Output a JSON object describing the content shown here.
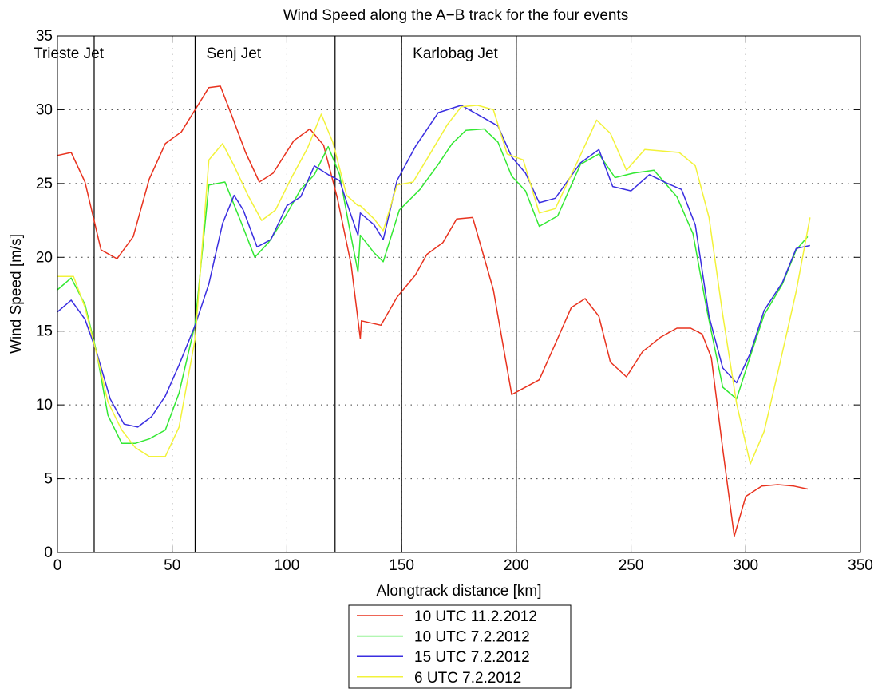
{
  "chart_data": {
    "type": "line",
    "title": "Wind Speed along the A−B track for the four events",
    "xlabel": "Alongtrack distance [km]",
    "ylabel": "Wind Speed [m/s]",
    "xlim": [
      0,
      350
    ],
    "ylim": [
      0,
      35
    ],
    "xticks": [
      0,
      50,
      100,
      150,
      200,
      250,
      300,
      350
    ],
    "yticks": [
      0,
      5,
      10,
      15,
      20,
      25,
      30,
      35
    ],
    "grid": true,
    "legend_position": "below plot",
    "vertical_lines": [
      16,
      60,
      121,
      150,
      200
    ],
    "regions": [
      {
        "label": "Trieste Jet",
        "x": 0
      },
      {
        "label": "Senj Jet",
        "x": 60
      },
      {
        "label": "Karlobag Jet",
        "x": 150
      }
    ],
    "x": [
      0,
      6.6,
      13.2,
      19.8,
      26.4,
      33,
      39.6,
      46.2,
      52.8,
      59.4,
      66,
      72.6,
      79.2,
      85.8,
      92.4,
      99,
      105.6,
      112.2,
      118.8,
      125.4,
      132,
      138.6,
      145.2,
      151.8,
      158.4,
      165,
      171.6,
      178.2,
      184.8,
      191.4,
      198,
      204.6,
      211.2,
      217.8,
      224.4,
      231,
      237.6,
      244.2,
      250.8,
      257.4,
      264,
      270.6,
      277.2,
      283.8,
      290.4,
      297,
      303.6,
      310.2,
      316.8,
      323.4,
      328
    ],
    "series": [
      {
        "name": "10 UTC 11.2.2012",
        "color": "#e8321e",
        "points": [
          [
            0,
            26.9
          ],
          [
            6,
            27.1
          ],
          [
            12,
            25.1
          ],
          [
            19,
            20.5
          ],
          [
            26,
            19.9
          ],
          [
            33,
            21.4
          ],
          [
            40,
            25.3
          ],
          [
            47,
            27.7
          ],
          [
            54,
            28.5
          ],
          [
            60,
            30
          ],
          [
            66,
            31.5
          ],
          [
            71,
            31.6
          ],
          [
            76,
            29.6
          ],
          [
            82,
            27.1
          ],
          [
            88,
            25.1
          ],
          [
            94,
            25.7
          ],
          [
            103,
            27.9
          ],
          [
            110,
            28.7
          ],
          [
            116,
            27.6
          ],
          [
            122,
            24
          ],
          [
            128,
            19.5
          ],
          [
            132,
            14.5
          ],
          [
            132.5,
            15.7
          ],
          [
            141,
            15.4
          ],
          [
            148,
            17.3
          ],
          [
            156,
            18.8
          ],
          [
            161,
            20.2
          ],
          [
            168,
            21
          ],
          [
            174,
            22.6
          ],
          [
            181,
            22.7
          ],
          [
            190,
            17.8
          ],
          [
            198,
            10.7
          ],
          [
            210,
            11.7
          ],
          [
            218,
            14.5
          ],
          [
            224,
            16.6
          ],
          [
            230,
            17.2
          ],
          [
            236,
            16
          ],
          [
            241,
            12.9
          ],
          [
            248,
            11.9
          ],
          [
            255,
            13.6
          ],
          [
            263,
            14.6
          ],
          [
            270,
            15.2
          ],
          [
            276,
            15.2
          ],
          [
            281,
            14.8
          ],
          [
            285,
            13.2
          ],
          [
            290,
            7
          ],
          [
            295,
            1.1
          ],
          [
            300,
            3.8
          ],
          [
            307,
            4.5
          ],
          [
            314,
            4.6
          ],
          [
            321,
            4.5
          ],
          [
            327,
            4.3
          ]
        ]
      },
      {
        "name": "10 UTC 7.2.2012",
        "color": "#33e833",
        "points": [
          [
            0,
            17.8
          ],
          [
            6,
            18.6
          ],
          [
            12,
            16.8
          ],
          [
            17,
            13.6
          ],
          [
            22,
            9.3
          ],
          [
            28,
            7.4
          ],
          [
            34,
            7.4
          ],
          [
            40,
            7.7
          ],
          [
            47,
            8.3
          ],
          [
            53,
            10.8
          ],
          [
            60,
            15.5
          ],
          [
            66,
            24.9
          ],
          [
            73,
            25.1
          ],
          [
            80,
            22.4
          ],
          [
            86,
            20
          ],
          [
            92,
            21
          ],
          [
            99,
            22.7
          ],
          [
            106,
            24.6
          ],
          [
            112,
            25.6
          ],
          [
            118,
            27.5
          ],
          [
            123,
            25.6
          ],
          [
            127,
            22.2
          ],
          [
            131,
            19
          ],
          [
            132,
            21.5
          ],
          [
            138,
            20.3
          ],
          [
            142,
            19.7
          ],
          [
            149,
            23.2
          ],
          [
            158,
            24.6
          ],
          [
            166,
            26.3
          ],
          [
            172,
            27.7
          ],
          [
            178,
            28.6
          ],
          [
            186,
            28.7
          ],
          [
            192,
            27.8
          ],
          [
            198,
            25.5
          ],
          [
            204,
            24.5
          ],
          [
            210,
            22.1
          ],
          [
            218,
            22.8
          ],
          [
            228,
            26.3
          ],
          [
            236,
            27
          ],
          [
            243,
            25.4
          ],
          [
            251,
            25.7
          ],
          [
            260,
            25.9
          ],
          [
            270,
            24.1
          ],
          [
            277,
            21.6
          ],
          [
            283,
            16.5
          ],
          [
            290,
            11.2
          ],
          [
            296,
            10.4
          ],
          [
            302,
            13.3
          ],
          [
            308,
            16.1
          ],
          [
            316,
            18.2
          ],
          [
            322,
            20.5
          ],
          [
            327,
            21.4
          ]
        ]
      },
      {
        "name": "15 UTC 7.2.2012",
        "color": "#3a2ee0",
        "points": [
          [
            0,
            16.3
          ],
          [
            6,
            17.1
          ],
          [
            12,
            15.8
          ],
          [
            17,
            13.6
          ],
          [
            23,
            10.4
          ],
          [
            29,
            8.7
          ],
          [
            35,
            8.5
          ],
          [
            41,
            9.2
          ],
          [
            47,
            10.6
          ],
          [
            53,
            12.7
          ],
          [
            60,
            15.4
          ],
          [
            66,
            18.2
          ],
          [
            72,
            22.3
          ],
          [
            77,
            24.2
          ],
          [
            81,
            23.2
          ],
          [
            87,
            20.7
          ],
          [
            93,
            21.2
          ],
          [
            100,
            23.5
          ],
          [
            106,
            24.1
          ],
          [
            112,
            26.2
          ],
          [
            118,
            25.6
          ],
          [
            123,
            25.2
          ],
          [
            127,
            23.3
          ],
          [
            131,
            21.5
          ],
          [
            132,
            23
          ],
          [
            138,
            22.2
          ],
          [
            142,
            21.2
          ],
          [
            148,
            25.2
          ],
          [
            156,
            27.5
          ],
          [
            166,
            29.8
          ],
          [
            176,
            30.3
          ],
          [
            184,
            29.6
          ],
          [
            192,
            28.9
          ],
          [
            198,
            26.8
          ],
          [
            204,
            25.7
          ],
          [
            210,
            23.7
          ],
          [
            217,
            24
          ],
          [
            228,
            26.4
          ],
          [
            236,
            27.3
          ],
          [
            242,
            24.8
          ],
          [
            250,
            24.5
          ],
          [
            258,
            25.6
          ],
          [
            266,
            25
          ],
          [
            272,
            24.6
          ],
          [
            278,
            22.2
          ],
          [
            284,
            16
          ],
          [
            290,
            12.5
          ],
          [
            296,
            11.5
          ],
          [
            302,
            13.5
          ],
          [
            308,
            16.4
          ],
          [
            316,
            18.3
          ],
          [
            322,
            20.6
          ],
          [
            328,
            20.8
          ]
        ]
      },
      {
        "name": "6 UTC 7.2.2012",
        "color": "#f2f23a",
        "points": [
          [
            0,
            18.7
          ],
          [
            7,
            18.7
          ],
          [
            12,
            16.6
          ],
          [
            17,
            13.5
          ],
          [
            22,
            10.2
          ],
          [
            28,
            8.3
          ],
          [
            34,
            7.1
          ],
          [
            40,
            6.5
          ],
          [
            47,
            6.5
          ],
          [
            53,
            8.5
          ],
          [
            60,
            14.5
          ],
          [
            66,
            26.6
          ],
          [
            72,
            27.7
          ],
          [
            77,
            26.2
          ],
          [
            83,
            24.2
          ],
          [
            89,
            22.5
          ],
          [
            95,
            23.2
          ],
          [
            102,
            25.4
          ],
          [
            109,
            27.4
          ],
          [
            115,
            29.7
          ],
          [
            120,
            27.8
          ],
          [
            126,
            24.2
          ],
          [
            131,
            23.5
          ],
          [
            132,
            23.5
          ],
          [
            138,
            22.6
          ],
          [
            142,
            21.8
          ],
          [
            148,
            24.9
          ],
          [
            155,
            25.1
          ],
          [
            162,
            26.9
          ],
          [
            170,
            29
          ],
          [
            176,
            30.2
          ],
          [
            183,
            30.3
          ],
          [
            190,
            30
          ],
          [
            196,
            27
          ],
          [
            203,
            26.6
          ],
          [
            210,
            23
          ],
          [
            217,
            23.3
          ],
          [
            227,
            26.6
          ],
          [
            235,
            29.3
          ],
          [
            241,
            28.4
          ],
          [
            248,
            25.9
          ],
          [
            256,
            27.3
          ],
          [
            264,
            27.2
          ],
          [
            271,
            27.1
          ],
          [
            278,
            26.2
          ],
          [
            284,
            22.7
          ],
          [
            290,
            16.1
          ],
          [
            296,
            10.1
          ],
          [
            302,
            6
          ],
          [
            308,
            8.2
          ],
          [
            314,
            12.2
          ],
          [
            322,
            17.7
          ],
          [
            328,
            22.7
          ]
        ]
      }
    ]
  }
}
